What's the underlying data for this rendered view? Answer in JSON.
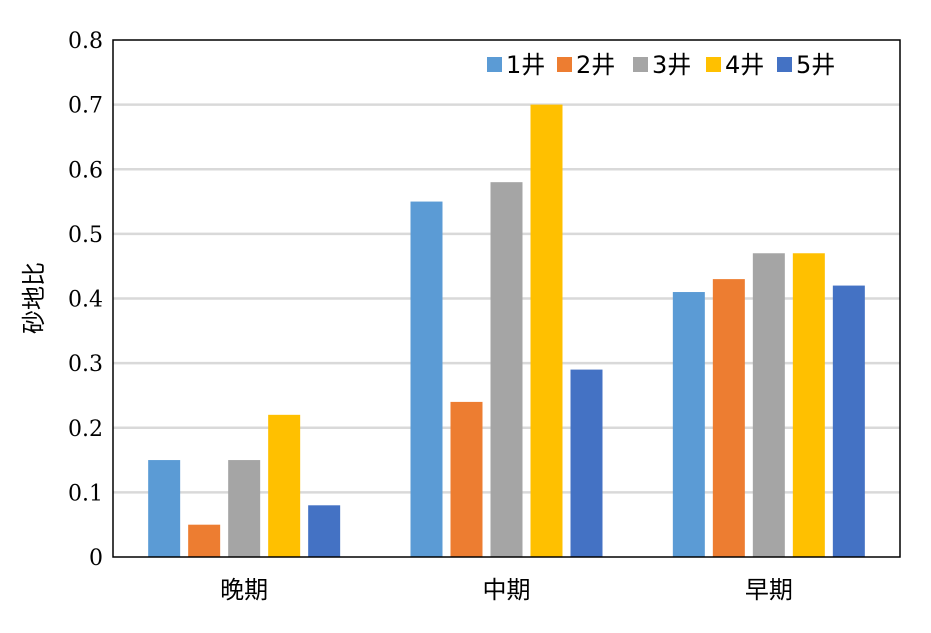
{
  "chart_data": {
    "type": "bar",
    "categories": [
      "晚期",
      "中期",
      "早期"
    ],
    "series": [
      {
        "name": "1井",
        "color": "#5b9bd5",
        "values": [
          0.15,
          0.55,
          0.41
        ]
      },
      {
        "name": "2井",
        "color": "#ed7d31",
        "values": [
          0.05,
          0.24,
          0.43
        ]
      },
      {
        "name": "3井",
        "color": "#a5a5a5",
        "values": [
          0.15,
          0.58,
          0.47
        ]
      },
      {
        "name": "4井",
        "color": "#ffc000",
        "values": [
          0.22,
          0.7,
          0.47
        ]
      },
      {
        "name": "5井",
        "color": "#4472c4",
        "values": [
          0.08,
          0.29,
          0.42
        ]
      }
    ],
    "ylabel": "砂地比",
    "xlabel": "",
    "ylim": [
      0,
      0.8
    ],
    "yticks": [
      "0",
      "0.1",
      "0.2",
      "0.3",
      "0.4",
      "0.5",
      "0.6",
      "0.7",
      "0.8"
    ],
    "grid": true,
    "legend_position": "top-right"
  }
}
